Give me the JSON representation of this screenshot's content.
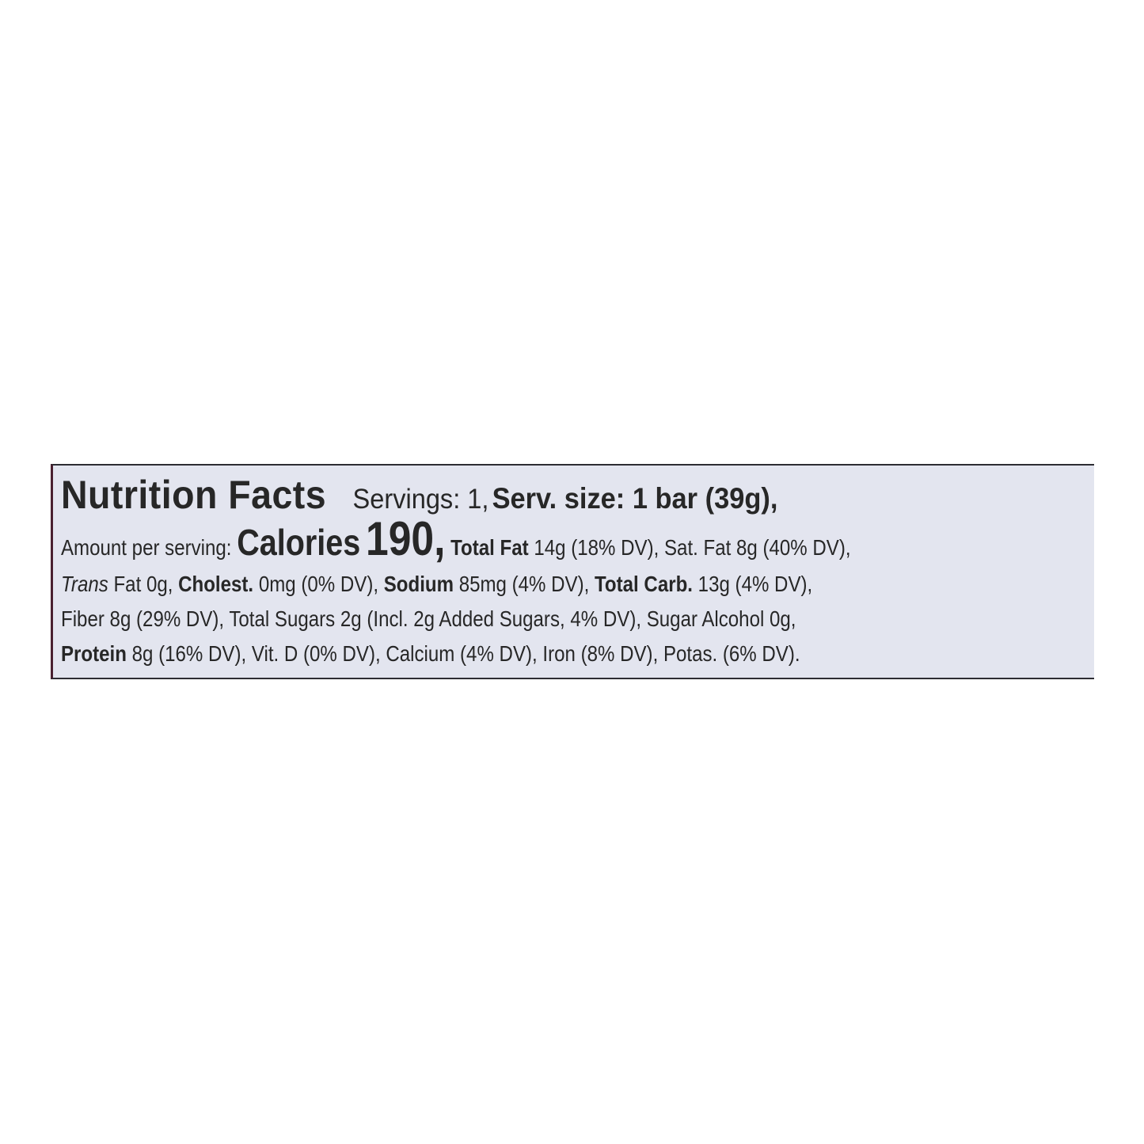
{
  "label": {
    "title": "Nutrition Facts",
    "servings": "Servings: 1,",
    "serving_size": "Serv. size: 1 bar (39g),",
    "amount_per_serving": "Amount per serving:",
    "calories_label": "Calories",
    "calories_value": "190,",
    "total_fat_label": "Total Fat",
    "total_fat_value": "14g (18% DV), Sat. Fat 8g (40% DV),",
    "trans_label": "Trans",
    "trans_value": "Fat 0g,",
    "cholest_label": "Cholest.",
    "cholest_value": "0mg (0% DV),",
    "sodium_label": "Sodium",
    "sodium_value": "85mg (4% DV),",
    "carb_label": "Total Carb.",
    "carb_value": "13g (4% DV),",
    "line4": "Fiber 8g (29% DV), Total Sugars 2g (Incl. 2g Added Sugars, 4% DV), Sugar Alcohol 0g,",
    "protein_label": "Protein",
    "protein_value": "8g (16% DV), Vit. D (0% DV), Calcium (4% DV), Iron (8% DV), Potas. (6% DV)."
  },
  "colors": {
    "label_background": "#e3e5ef",
    "text": "#272727"
  }
}
